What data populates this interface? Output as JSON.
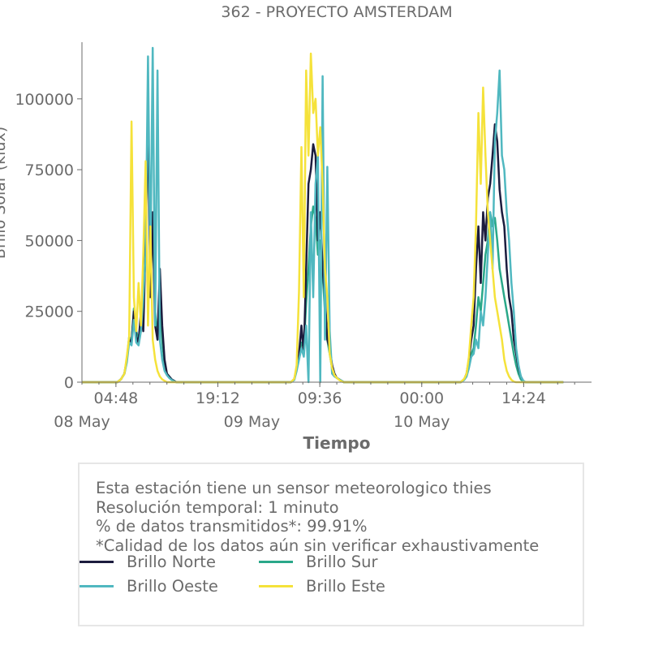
{
  "chart_data": {
    "type": "line",
    "title": "362 - PROYECTO AMSTERDAM",
    "xlabel": "Tiempo",
    "ylabel": "Brillo Solar (klux)",
    "ylim": [
      0,
      120000
    ],
    "xlim": [
      "2024-05-08 00:00",
      "2024-05-10 23:59"
    ],
    "y_ticks": [
      0,
      25000,
      50000,
      75000,
      100000
    ],
    "y_tick_labels": [
      "0",
      "25000",
      "50000",
      "75000",
      "100000"
    ],
    "x_ticks": [
      "2024-05-08 04:48",
      "2024-05-08 19:12",
      "2024-05-09 09:36",
      "2024-05-10 00:00",
      "2024-05-10 14:24"
    ],
    "x_tick_labels": [
      "04:48",
      "19:12",
      "09:36",
      "00:00",
      "14:24"
    ],
    "date_labels": [
      "08 May",
      "09 May",
      "10 May"
    ],
    "date_label_positions": [
      "2024-05-08 00:00",
      "2024-05-09 00:00",
      "2024-05-10 00:00"
    ],
    "legend_position": "lower-center",
    "grid": false,
    "x_time": [
      "00:00",
      "04:00",
      "05:00",
      "05:30",
      "06:00",
      "06:20",
      "06:40",
      "07:00",
      "07:20",
      "07:40",
      "08:00",
      "08:20",
      "08:40",
      "09:00",
      "09:20",
      "09:40",
      "10:00",
      "10:20",
      "10:40",
      "11:00",
      "11:20",
      "11:40",
      "12:00",
      "12:20",
      "12:40",
      "13:00",
      "13:20",
      "13:40",
      "14:00",
      "14:20",
      "14:40",
      "15:00",
      "15:20",
      "15:40",
      "16:00",
      "16:20",
      "16:40",
      "17:00",
      "17:20",
      "17:40",
      "18:00",
      "18:30",
      "19:00",
      "20:00",
      "24:00"
    ],
    "series": [
      {
        "name": "Brillo Norte",
        "color": "#1c1c3e",
        "days": [
          [
            0,
            0,
            0,
            1000,
            3000,
            8000,
            15000,
            14000,
            25000,
            16000,
            14000,
            25000,
            18000,
            50000,
            95000,
            30000,
            60000,
            20000,
            15000,
            40000,
            20000,
            8000,
            3000,
            2000,
            1000,
            500,
            0,
            0,
            0,
            0,
            0,
            0,
            0,
            0,
            0,
            0,
            0,
            0,
            0,
            0,
            0,
            0,
            0,
            0,
            0
          ],
          [
            0,
            0,
            0,
            0,
            1000,
            5000,
            10000,
            20000,
            10000,
            40000,
            70000,
            75000,
            84000,
            80000,
            50000,
            60000,
            40000,
            30000,
            15000,
            12000,
            6000,
            3000,
            1500,
            1000,
            500,
            0,
            0,
            0,
            0,
            0,
            0,
            0,
            0,
            0,
            0,
            0,
            0,
            0,
            0,
            0,
            0,
            0,
            0,
            0,
            0
          ],
          [
            0,
            0,
            0,
            0,
            1000,
            3000,
            8000,
            15000,
            20000,
            40000,
            55000,
            35000,
            60000,
            50000,
            65000,
            70000,
            80000,
            91000,
            85000,
            68000,
            60000,
            55000,
            40000,
            30000,
            25000,
            15000,
            10000,
            5000,
            2000,
            500,
            0,
            0,
            0,
            0,
            0,
            0,
            0,
            0,
            0,
            0,
            0,
            0,
            0,
            0,
            0
          ]
        ]
      },
      {
        "name": "Brillo Sur",
        "color": "#2aa889",
        "days": [
          [
            0,
            0,
            0,
            1000,
            3000,
            8000,
            16000,
            14000,
            26000,
            18000,
            15000,
            20000,
            40000,
            60000,
            85000,
            40000,
            55000,
            25000,
            15000,
            30000,
            15000,
            6000,
            3000,
            2000,
            1000,
            500,
            0,
            0,
            0,
            0,
            0,
            0,
            0,
            0,
            0,
            0,
            0,
            0,
            0,
            0,
            0,
            0,
            0,
            0,
            0
          ],
          [
            0,
            0,
            0,
            0,
            1000,
            5000,
            9000,
            14000,
            12000,
            28000,
            40000,
            55000,
            62000,
            58000,
            45000,
            50000,
            38000,
            25000,
            15000,
            10000,
            5000,
            2500,
            1500,
            1000,
            500,
            0,
            0,
            0,
            0,
            0,
            0,
            0,
            0,
            0,
            0,
            0,
            0,
            0,
            0,
            0,
            0,
            0,
            0,
            0,
            0
          ],
          [
            0,
            0,
            0,
            0,
            1000,
            2500,
            6000,
            10000,
            12000,
            20000,
            30000,
            25000,
            35000,
            45000,
            50000,
            60000,
            55000,
            58000,
            50000,
            40000,
            35000,
            30000,
            25000,
            20000,
            15000,
            10000,
            6000,
            3000,
            1000,
            300,
            0,
            0,
            0,
            0,
            0,
            0,
            0,
            0,
            0,
            0,
            0,
            0,
            0,
            0,
            0
          ]
        ]
      },
      {
        "name": "Brillo Oeste",
        "color": "#50b8c0",
        "days": [
          [
            0,
            0,
            0,
            1000,
            3000,
            7000,
            14000,
            13000,
            22000,
            14000,
            13000,
            18000,
            30000,
            45000,
            115000,
            40000,
            118000,
            20000,
            110000,
            15000,
            8000,
            4000,
            2500,
            1500,
            800,
            300,
            0,
            0,
            0,
            0,
            0,
            0,
            0,
            0,
            0,
            0,
            0,
            0,
            0,
            0,
            0,
            0,
            0,
            0,
            0
          ],
          [
            0,
            0,
            0,
            0,
            800,
            4000,
            8000,
            12000,
            9000,
            20000,
            0,
            60000,
            30000,
            70000,
            80000,
            0,
            108000,
            15000,
            76000,
            18000,
            3000,
            2000,
            1500,
            1000,
            500,
            0,
            0,
            0,
            0,
            0,
            0,
            0,
            0,
            0,
            0,
            0,
            0,
            0,
            0,
            0,
            0,
            0,
            0,
            0,
            0
          ],
          [
            0,
            0,
            0,
            0,
            800,
            2000,
            5000,
            9000,
            10000,
            15000,
            12000,
            25000,
            20000,
            30000,
            45000,
            60000,
            40000,
            85000,
            95000,
            110000,
            80000,
            75000,
            60000,
            50000,
            35000,
            25000,
            12000,
            6000,
            2000,
            500,
            0,
            0,
            0,
            0,
            0,
            0,
            0,
            0,
            0,
            0,
            0,
            0,
            0,
            0,
            0
          ]
        ]
      },
      {
        "name": "Brillo Este",
        "color": "#f5e23a",
        "days": [
          [
            0,
            0,
            0,
            1000,
            3000,
            9000,
            16000,
            92000,
            30000,
            18000,
            35000,
            20000,
            45000,
            78000,
            20000,
            55000,
            15000,
            8000,
            4000,
            2000,
            1000,
            500,
            0,
            0,
            0,
            0,
            0,
            0,
            0,
            0,
            0,
            0,
            0,
            0,
            0,
            0,
            0,
            0,
            0,
            0,
            0,
            0,
            0,
            0,
            0
          ],
          [
            0,
            0,
            0,
            0,
            1200,
            6000,
            32000,
            83000,
            30000,
            110000,
            80000,
            116000,
            95000,
            100000,
            80000,
            90000,
            70000,
            40000,
            30000,
            10000,
            5000,
            2500,
            1500,
            800,
            300,
            0,
            0,
            0,
            0,
            0,
            0,
            0,
            0,
            0,
            0,
            0,
            0,
            0,
            0,
            0,
            0,
            0,
            0,
            0,
            0
          ],
          [
            0,
            0,
            0,
            0,
            1200,
            3000,
            9000,
            20000,
            30000,
            55000,
            95000,
            70000,
            104000,
            80000,
            60000,
            50000,
            40000,
            30000,
            25000,
            20000,
            15000,
            8000,
            4000,
            2000,
            800,
            200,
            0,
            0,
            0,
            0,
            0,
            0,
            0,
            0,
            0,
            0,
            0,
            0,
            0,
            0,
            0,
            0,
            0,
            0,
            0
          ]
        ]
      }
    ]
  },
  "info": {
    "lines": [
      "Esta estación tiene un sensor meteorologico thies",
      "Resolución temporal: 1 minuto",
      "% de datos transmitidos*: 99.91%",
      "*Calidad de los datos aún sin verificar exhaustivamente"
    ]
  },
  "legend": {
    "items": [
      {
        "label": "Brillo Norte",
        "color": "#1c1c3e"
      },
      {
        "label": "Brillo Sur",
        "color": "#2aa889"
      },
      {
        "label": "Brillo Oeste",
        "color": "#50b8c0"
      },
      {
        "label": "Brillo Este",
        "color": "#f5e23a"
      }
    ]
  },
  "colors": {
    "text": "#6b6b6b",
    "axis": "#6b6b6b",
    "box_border": "#e6e6e6"
  }
}
